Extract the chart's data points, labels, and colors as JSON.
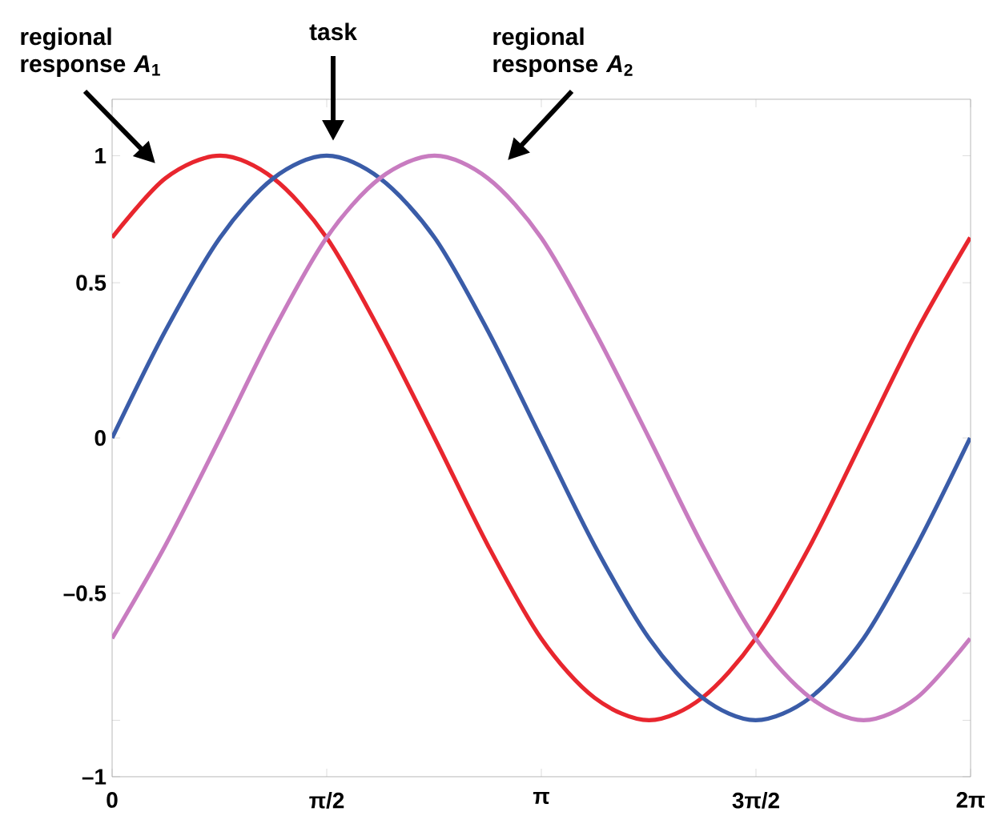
{
  "chart_data": {
    "type": "line",
    "x": [
      0,
      0.39,
      0.79,
      1.18,
      1.57,
      1.96,
      2.36,
      2.75,
      3.14,
      3.53,
      3.93,
      4.32,
      4.71,
      5.11,
      5.5,
      5.89,
      6.28
    ],
    "series": [
      {
        "color": "#e8262e",
        "values": [
          0.71,
          0.92,
          1,
          0.92,
          0.71,
          0.38,
          0,
          -0.38,
          -0.71,
          -0.92,
          -1,
          -0.92,
          -0.71,
          -0.38,
          0,
          0.38,
          0.71
        ]
      },
      {
        "color": "#3a5ca8",
        "values": [
          0,
          0.38,
          0.71,
          0.92,
          1,
          0.92,
          0.71,
          0.38,
          0,
          -0.38,
          -0.71,
          -0.92,
          -1,
          -0.92,
          -0.71,
          -0.38,
          0
        ]
      },
      {
        "color": "#c87cc0",
        "values": [
          -0.71,
          -0.38,
          0,
          0.38,
          0.71,
          0.92,
          1,
          0.92,
          0.71,
          0.38,
          0,
          -0.38,
          -0.71,
          -0.92,
          -1,
          -0.92,
          -0.71
        ]
      }
    ],
    "xlim": [
      0,
      6.2832
    ],
    "ylim": [
      -1.2,
      1.2
    ],
    "xticks": [
      0,
      {
        "value": 1.5708,
        "label": "π/2"
      },
      {
        "value": 3.1416,
        "label": "π"
      },
      {
        "value": 4.7124,
        "label": "3π/2"
      },
      {
        "value": 6.2832,
        "label": "2π"
      }
    ],
    "yticks": [
      1,
      {
        "value": 0.55,
        "label": "0.5"
      },
      0,
      {
        "value": -0.55,
        "label": "–0.5"
      },
      {
        "value": -1,
        "label": null
      },
      {
        "value": -1.2,
        "label": "–1"
      }
    ],
    "annotations": [
      "regional response *A*$_{1}$",
      "task",
      "regional response *A*$_{2}$"
    ],
    "grid": false,
    "legend": false,
    "marker": "none",
    "line_style": "solid"
  }
}
